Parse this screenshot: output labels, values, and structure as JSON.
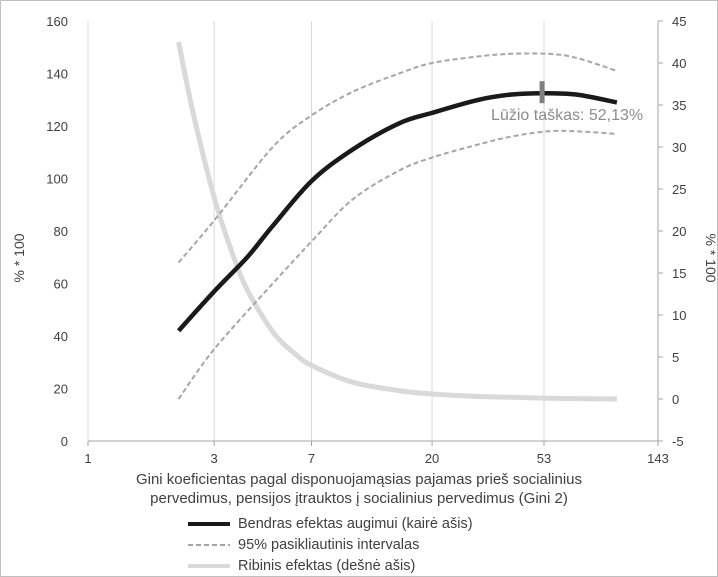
{
  "chart_data": {
    "type": "line",
    "xlabel_line1": "Gini koeficientas pagal disponuojamąsias pajamas prieš socialinius",
    "xlabel_line2": "pervedimus, pensijos įtrauktos į socialinius pervedimus (Gini 2)",
    "ylabel_left": "% * 100",
    "ylabel_right": "% * 100",
    "x_ticks": [
      "1",
      "3",
      "7",
      "20",
      "53",
      "143"
    ],
    "x_scale": "log",
    "xlim": [
      1,
      143
    ],
    "ylim_left": [
      0,
      160
    ],
    "yticks_left": [
      "0",
      "20",
      "40",
      "60",
      "80",
      "100",
      "120",
      "140",
      "160"
    ],
    "ylim_right": [
      -5,
      45
    ],
    "yticks_right": [
      "-5",
      "0",
      "5",
      "10",
      "15",
      "20",
      "25",
      "30",
      "35",
      "40",
      "45"
    ],
    "grid": "vertical",
    "annotation": "Lūžio taškas: 52,13%",
    "annotation_x": 52.13,
    "series": [
      {
        "name": "Bendras efektas augimui (kairė ašis)",
        "axis": "left",
        "color": "#1a1a1a",
        "style": "solid-thick",
        "x": [
          2.2,
          3,
          4,
          5,
          7,
          10,
          15,
          20,
          30,
          40,
          52.13,
          70,
          100
        ],
        "y": [
          42,
          57,
          70,
          82,
          99,
          111,
          121,
          125,
          130,
          132,
          132.5,
          132,
          129
        ]
      },
      {
        "name": "95% pasikliautinis intervalas",
        "axis": "left",
        "color": "#a6a6a6",
        "style": "dashed",
        "x": [
          2.2,
          3,
          5,
          7,
          10,
          15,
          20,
          30,
          40,
          55,
          70,
          100
        ],
        "y": [
          68,
          84,
          112,
          124,
          133,
          140,
          144,
          146.5,
          147.5,
          147.5,
          146,
          141
        ]
      },
      {
        "name": "",
        "axis": "left",
        "color": "#a6a6a6",
        "style": "dashed",
        "x": [
          2.2,
          3,
          5,
          7,
          10,
          15,
          20,
          30,
          40,
          55,
          70,
          100
        ],
        "y": [
          16,
          35,
          60,
          76,
          92,
          103,
          108,
          113,
          116,
          118,
          118,
          117
        ]
      },
      {
        "name": "Ribinis efektas (dešnė ašis)",
        "axis": "right",
        "color": "#d9d9d9",
        "style": "solid-thick",
        "x": [
          2.2,
          2.5,
          3,
          3.5,
          4,
          5,
          6,
          7,
          10,
          15,
          20,
          30,
          40,
          55,
          100
        ],
        "y": [
          42.5,
          34,
          24,
          17.5,
          13,
          8,
          5.5,
          4,
          2,
          1,
          0.6,
          0.3,
          0.2,
          0.1,
          0
        ]
      }
    ]
  }
}
